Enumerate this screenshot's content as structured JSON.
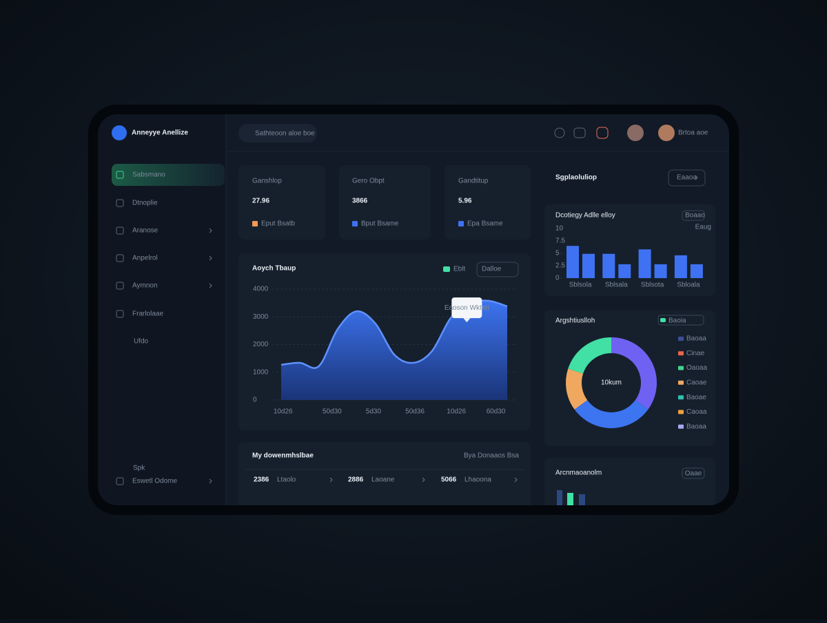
{
  "brand": "Anneyye Anellize",
  "search": "Sathteoon aloe boe",
  "user": "Brtoa aoe",
  "nav": [
    "Sabsmano",
    "Dtnoplie",
    "Aranose",
    "Anpelrol",
    "Aymnon",
    "Frarlolaae",
    "Ufdo"
  ],
  "footer_nav": {
    "label": "Spk",
    "item": "Eswetl Odome"
  },
  "kpis": [
    {
      "label": "Ganshlop",
      "value": "27.96",
      "sub": "Eput Bsatb",
      "color": "#f09a55"
    },
    {
      "label": "Gero Obpt",
      "value": "3866",
      "sub": "Bput Bsame",
      "color": "#3f72f2"
    },
    {
      "label": "Gandtitup",
      "value": "5.96",
      "sub": "Epa Bsame",
      "color": "#3f72f2"
    }
  ],
  "area_chart": {
    "type": "area",
    "title": "Aoych Tbaup",
    "legend": "Eblt",
    "button": "Dalloe",
    "tooltip": "Eaoson Wktatt",
    "x": [
      0,
      1,
      2,
      3,
      4,
      5,
      6,
      7,
      8,
      9,
      10,
      11,
      12
    ],
    "values": [
      1270,
      1340,
      1220,
      2560,
      3200,
      2760,
      1640,
      1340,
      1760,
      2960,
      3500,
      3580,
      3380
    ],
    "color": "#3a6ee8",
    "xlim": [
      0,
      12
    ],
    "ylim": [
      0,
      4000
    ],
    "yticks": [
      0,
      1000,
      2000,
      3000,
      4000
    ],
    "xticks": [
      {
        "value": 0.1,
        "label": "10d26"
      },
      {
        "value": 2.7,
        "label": "50d30"
      },
      {
        "value": 4.9,
        "label": "5d30"
      },
      {
        "value": 7.1,
        "label": "50d36"
      },
      {
        "value": 9.3,
        "label": "10d26"
      },
      {
        "value": 11.4,
        "label": "60d30"
      }
    ],
    "grid": true
  },
  "activity": {
    "title": "My dowenmhslbae",
    "link": "Bya Donaaos Bsa",
    "items": [
      {
        "value": "2386",
        "label": "Ltaolo"
      },
      {
        "value": "2886",
        "label": "Laoane"
      },
      {
        "value": "5066",
        "label": "Lhaoona"
      }
    ]
  },
  "schedule": {
    "title": "Sgplaoluliop",
    "button": "Eaaoa"
  },
  "bar_chart": {
    "type": "bar",
    "title": "Dcotiegy Adlle elloy",
    "legend": "Eaug",
    "button": "Boaao",
    "categories": [
      "Sblsola",
      "Sblsala",
      "Sblsota",
      "Sbloala"
    ],
    "series": [
      {
        "color": "#3f72f2",
        "values": [
          6.5,
          4.9,
          5.8,
          4.6
        ]
      },
      {
        "color": "#3f72f2",
        "values": [
          4.9,
          2.8,
          2.8,
          2.8
        ]
      }
    ],
    "ylim": [
      0,
      10
    ],
    "yticks": [
      0,
      2.5,
      5,
      7.5,
      10
    ]
  },
  "donut": {
    "type": "pie",
    "title": "Argshtiuslloh",
    "legend": "Baoia",
    "center": "10kum",
    "values": [
      35,
      30,
      15,
      20
    ],
    "colors": [
      "#6f62f2",
      "#3d74f0",
      "#f0a860",
      "#42e0a4"
    ],
    "items": [
      {
        "label": "Baoaa",
        "color": "#3b4f9a"
      },
      {
        "label": "Cinae",
        "color": "#e8664a"
      },
      {
        "label": "Oaoaa",
        "color": "#3fd48e"
      },
      {
        "label": "Caoae",
        "color": "#f0a860"
      },
      {
        "label": "Baoae",
        "color": "#2fc0b0"
      },
      {
        "label": "Caoaa",
        "color": "#f0a040"
      },
      {
        "label": "Baoaa",
        "color": "#a6a8f0"
      }
    ]
  },
  "recent": {
    "title": "Arcnmaoanolm",
    "button": "Oaae"
  }
}
